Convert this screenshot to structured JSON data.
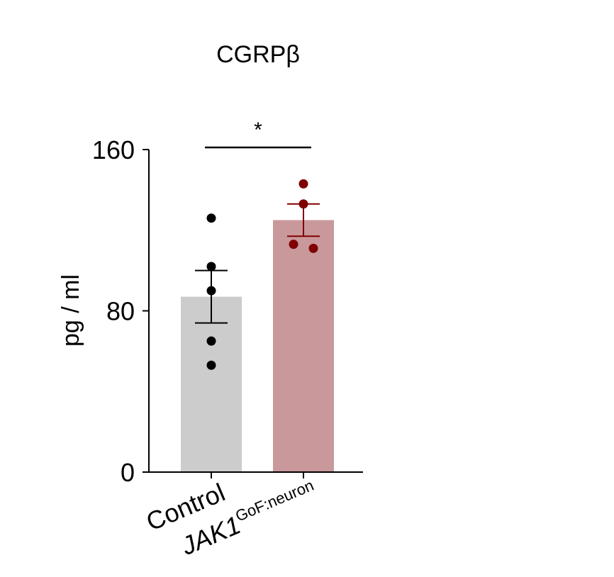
{
  "chart_data": {
    "type": "bar",
    "title": "CGRPβ",
    "ylabel": "pg / ml",
    "xlabel": "",
    "ylim": [
      0,
      160
    ],
    "yticks": [
      "0",
      "80",
      "160"
    ],
    "categories": [
      {
        "main": "Control",
        "sup": ""
      },
      {
        "main": "JAK1",
        "sup": "GoF:neuron"
      }
    ],
    "means": [
      87,
      125
    ],
    "sem": [
      13,
      8
    ],
    "points": [
      [
        126,
        102,
        90,
        65,
        53
      ],
      [
        143,
        133,
        113,
        111
      ]
    ],
    "bar_colors": [
      "#cccccc",
      "#c9989b"
    ],
    "point_colors": [
      "#000000",
      "#800000"
    ],
    "error_colors": [
      "#000000",
      "#800000"
    ],
    "significance": {
      "label": "*",
      "between": [
        0,
        1
      ]
    }
  }
}
